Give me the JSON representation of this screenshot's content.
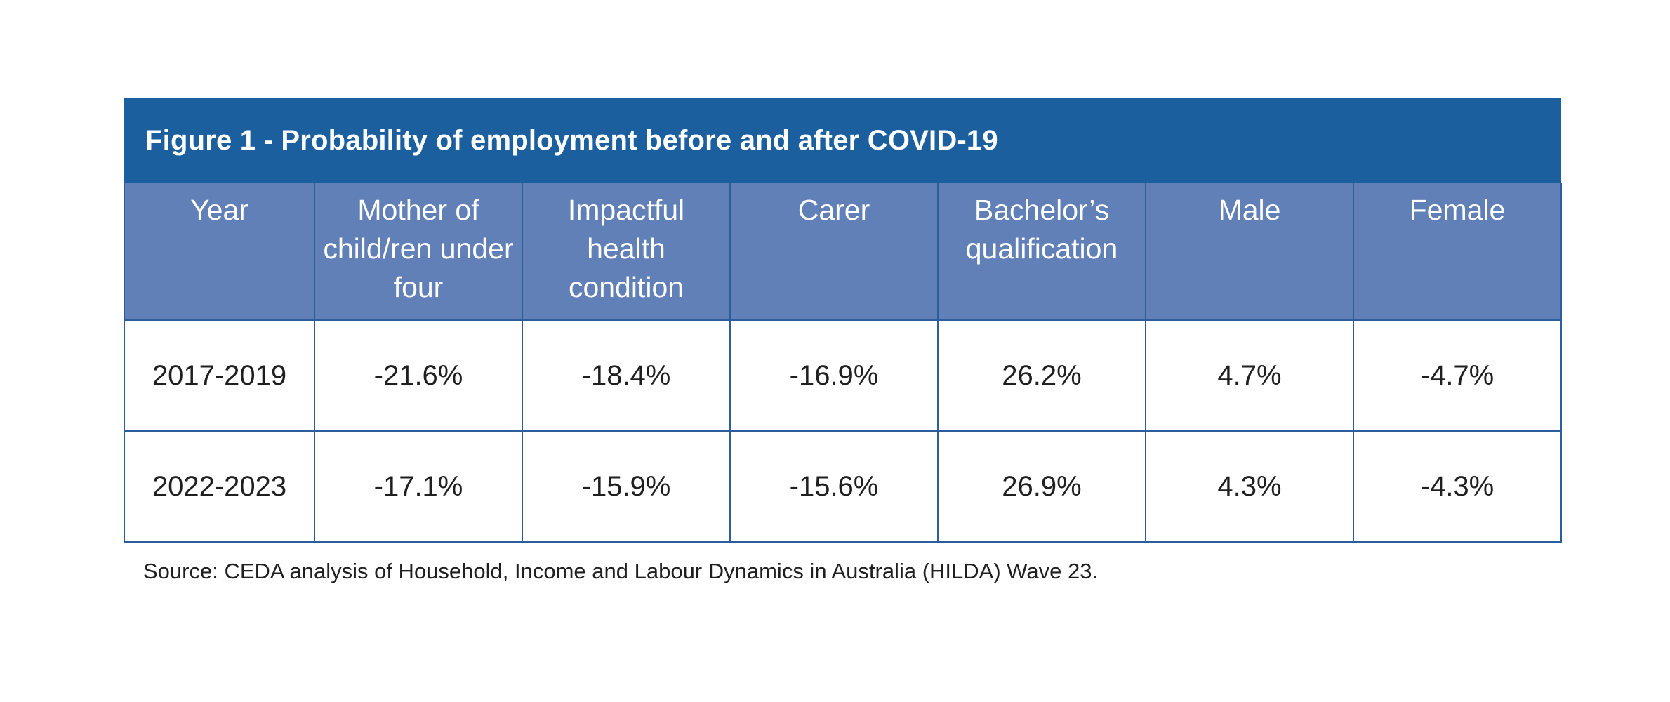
{
  "chart_data": {
    "type": "table",
    "title": "Figure 1 - Probability of employment before and after COVID-19",
    "columns": [
      "Year",
      "Mother of child/ren under four",
      "Impactful health condition",
      "Carer",
      "Bachelor’s qualification",
      "Male",
      "Female"
    ],
    "rows": [
      [
        "2017-2019",
        "-21.6%",
        "-18.4%",
        "-16.9%",
        "26.2%",
        "4.7%",
        "-4.7%"
      ],
      [
        "2022-2023",
        "-17.1%",
        "-15.9%",
        "-15.6%",
        "26.9%",
        "4.3%",
        "-4.3%"
      ]
    ],
    "source": "Source: CEDA analysis of Household, Income and Labour Dynamics in Australia (HILDA) Wave 23."
  },
  "colors": {
    "title_bg": "#1c5f9f",
    "header_bg": "#6180b7",
    "border": "#2c5d9c"
  }
}
